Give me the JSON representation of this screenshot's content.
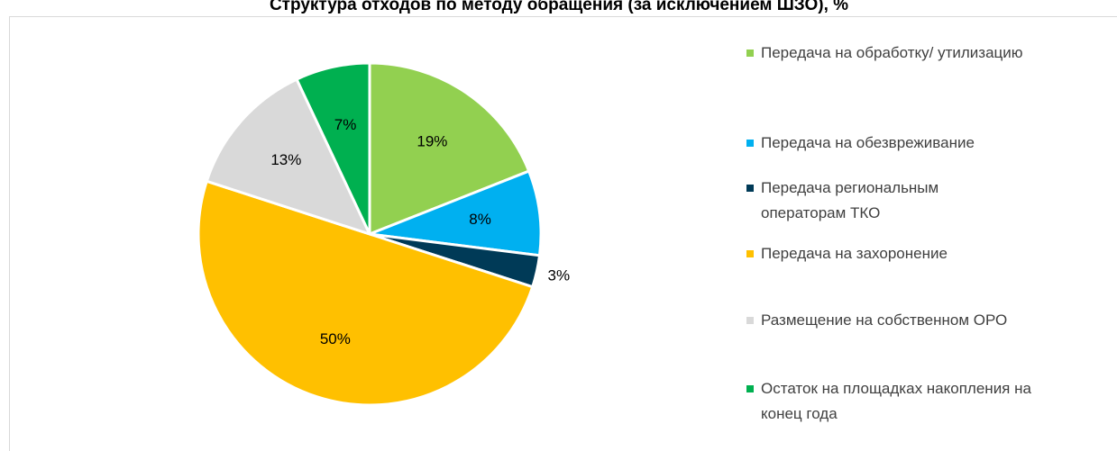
{
  "chart_data": {
    "type": "pie",
    "title": "Структура отходов по методу обращения (за исключением ШЗО), %",
    "categories": [
      "Передача на обработку/ утилизацию",
      "Передача на обезвреживание",
      "Передача региональным операторам ТКО",
      "Передача на захоронение",
      "Размещение на собственном ОРО",
      "Остаток на площадках накопления на конец года"
    ],
    "values": [
      19,
      8,
      3,
      50,
      13,
      7
    ],
    "value_labels": [
      "19%",
      "8%",
      "3%",
      "50%",
      "13%",
      "7%"
    ],
    "colors": [
      "#92d050",
      "#00b0f0",
      "#003a57",
      "#ffc000",
      "#d9d9d9",
      "#00b050"
    ],
    "legend": "right"
  }
}
